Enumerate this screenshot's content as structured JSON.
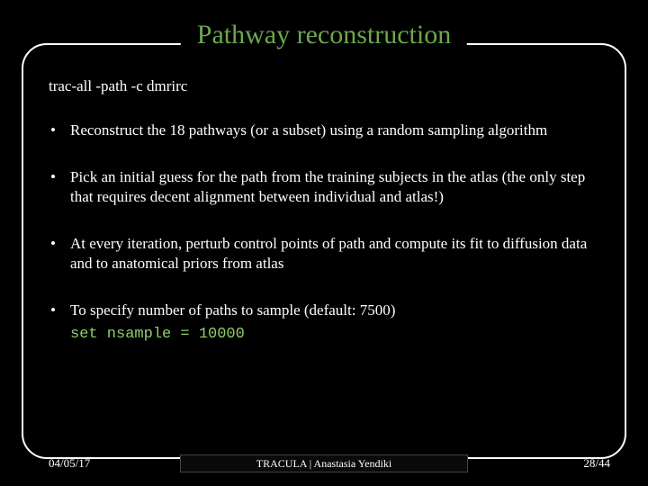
{
  "title": "Pathway reconstruction",
  "command": "trac-all -path -c dmrirc",
  "bullets": [
    "Reconstruct the 18 pathways (or a subset) using a random sampling algorithm",
    "Pick an initial guess for the path from the training subjects in the atlas (the only step that requires decent alignment between individual and atlas!)",
    "At every iteration, perturb control points of path and compute its fit to diffusion data and to anatomical priors from atlas",
    "To specify number of paths to sample (default: 7500)"
  ],
  "code": "set nsample = 10000",
  "footer": {
    "date": "04/05/17",
    "center": "TRACULA | Anastasia Yendiki",
    "page": "28/44"
  },
  "colors": {
    "background": "#000000",
    "title": "#6aa84f",
    "text": "#ffffff",
    "code": "#8fce6a",
    "border": "#ffffff"
  }
}
